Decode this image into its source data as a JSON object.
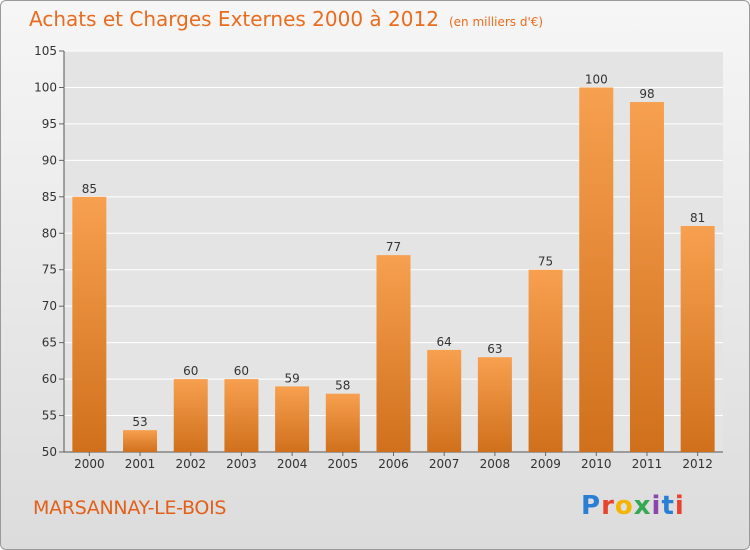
{
  "header": {
    "title": "Achats et Charges Externes 2000 à 2012",
    "unit": "(en milliers d'€)"
  },
  "footer": {
    "city": "MARSANNAY-LE-BOIS",
    "logo_text": "Proxiti",
    "logo_colors": [
      "#2a7fd4",
      "#e8432e",
      "#f4b400",
      "#34a853",
      "#8e44ad",
      "#2a7fd4",
      "#e8432e"
    ]
  },
  "chart_data": {
    "type": "bar",
    "title": "Achats et Charges Externes 2000 à 2012",
    "subtitle": "(en milliers d'€)",
    "categories": [
      "2000",
      "2001",
      "2002",
      "2003",
      "2004",
      "2005",
      "2006",
      "2007",
      "2008",
      "2009",
      "2010",
      "2011",
      "2012"
    ],
    "values": [
      85,
      53,
      60,
      60,
      59,
      58,
      77,
      64,
      63,
      75,
      100,
      98,
      81
    ],
    "ylim": [
      50,
      105
    ],
    "yticks": [
      50,
      55,
      60,
      65,
      70,
      75,
      80,
      85,
      90,
      95,
      100,
      105
    ],
    "grid": "horizontal",
    "bar_color_top": "#f7a04f",
    "bar_color_bottom": "#d0701c"
  }
}
